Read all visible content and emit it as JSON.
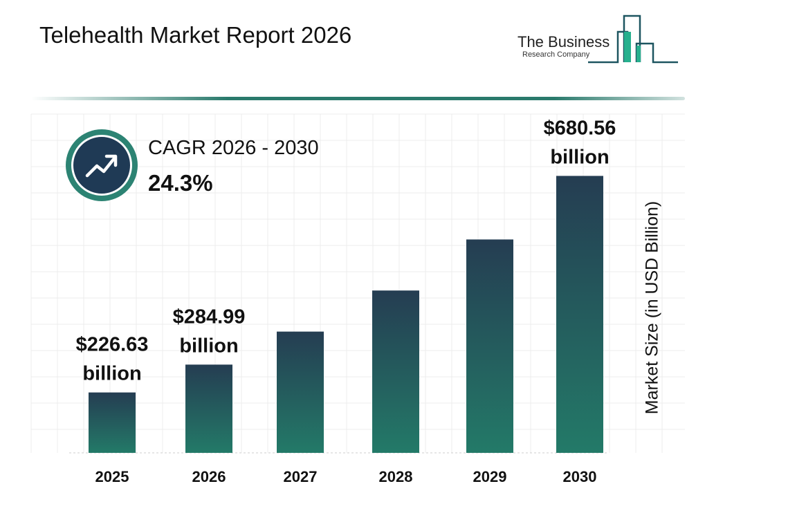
{
  "title": "Telehealth Market Report 2026",
  "logo": {
    "line1": "The Business",
    "line2": "Research Company"
  },
  "cagr": {
    "label": "CAGR 2026 - 2030",
    "value": "24.3%",
    "icon": "trend-up-arrow-icon"
  },
  "colors": {
    "bar_top": "#253d52",
    "bar_bottom": "#237a68",
    "accent": "#2c8373",
    "badge": "#1f3a55"
  },
  "chart_data": {
    "type": "bar",
    "title": "",
    "xlabel": "",
    "ylabel": "Market Size (in USD Billion)",
    "categories": [
      "2025",
      "2026",
      "2027",
      "2028",
      "2029",
      "2030"
    ],
    "values": [
      226.63,
      284.99,
      354.2,
      440.3,
      547.3,
      680.56
    ],
    "data_labels": [
      [
        "$226.63",
        "billion"
      ],
      [
        "$284.99",
        "billion"
      ],
      null,
      null,
      null,
      [
        "$680.56",
        "billion"
      ]
    ],
    "ylim": [
      100,
      700
    ],
    "grid": true,
    "legend": "none"
  }
}
